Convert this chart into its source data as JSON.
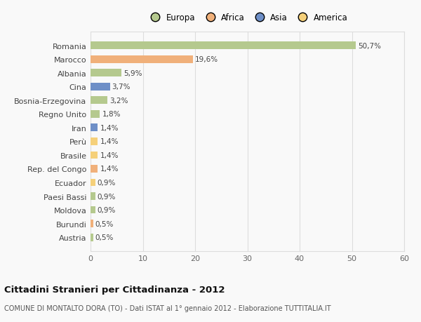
{
  "countries": [
    "Romania",
    "Marocco",
    "Albania",
    "Cina",
    "Bosnia-Erzegovina",
    "Regno Unito",
    "Iran",
    "Perù",
    "Brasile",
    "Rep. del Congo",
    "Ecuador",
    "Paesi Bassi",
    "Moldova",
    "Burundi",
    "Austria"
  ],
  "values": [
    50.7,
    19.6,
    5.9,
    3.7,
    3.2,
    1.8,
    1.4,
    1.4,
    1.4,
    1.4,
    0.9,
    0.9,
    0.9,
    0.5,
    0.5
  ],
  "labels": [
    "50,7%",
    "19,6%",
    "5,9%",
    "3,7%",
    "3,2%",
    "1,8%",
    "1,4%",
    "1,4%",
    "1,4%",
    "1,4%",
    "0,9%",
    "0,9%",
    "0,9%",
    "0,5%",
    "0,5%"
  ],
  "colors": [
    "#b5c98e",
    "#f0b07a",
    "#b5c98e",
    "#6e8fc7",
    "#b5c98e",
    "#b5c98e",
    "#6e8fc7",
    "#f5d07a",
    "#f5d07a",
    "#f0b07a",
    "#f5d07a",
    "#b5c98e",
    "#b5c98e",
    "#f0b07a",
    "#b5c98e"
  ],
  "legend_labels": [
    "Europa",
    "Africa",
    "Asia",
    "America"
  ],
  "legend_colors": [
    "#b5c98e",
    "#f0b07a",
    "#6e8fc7",
    "#f5d07a"
  ],
  "title": "Cittadini Stranieri per Cittadinanza - 2012",
  "subtitle": "COMUNE DI MONTALTO DORA (TO) - Dati ISTAT al 1° gennaio 2012 - Elaborazione TUTTITALIA.IT",
  "xlim": [
    0,
    60
  ],
  "xticks": [
    0,
    10,
    20,
    30,
    40,
    50,
    60
  ],
  "bg_color": "#f9f9f9",
  "grid_color": "#dddddd",
  "bar_height": 0.55
}
